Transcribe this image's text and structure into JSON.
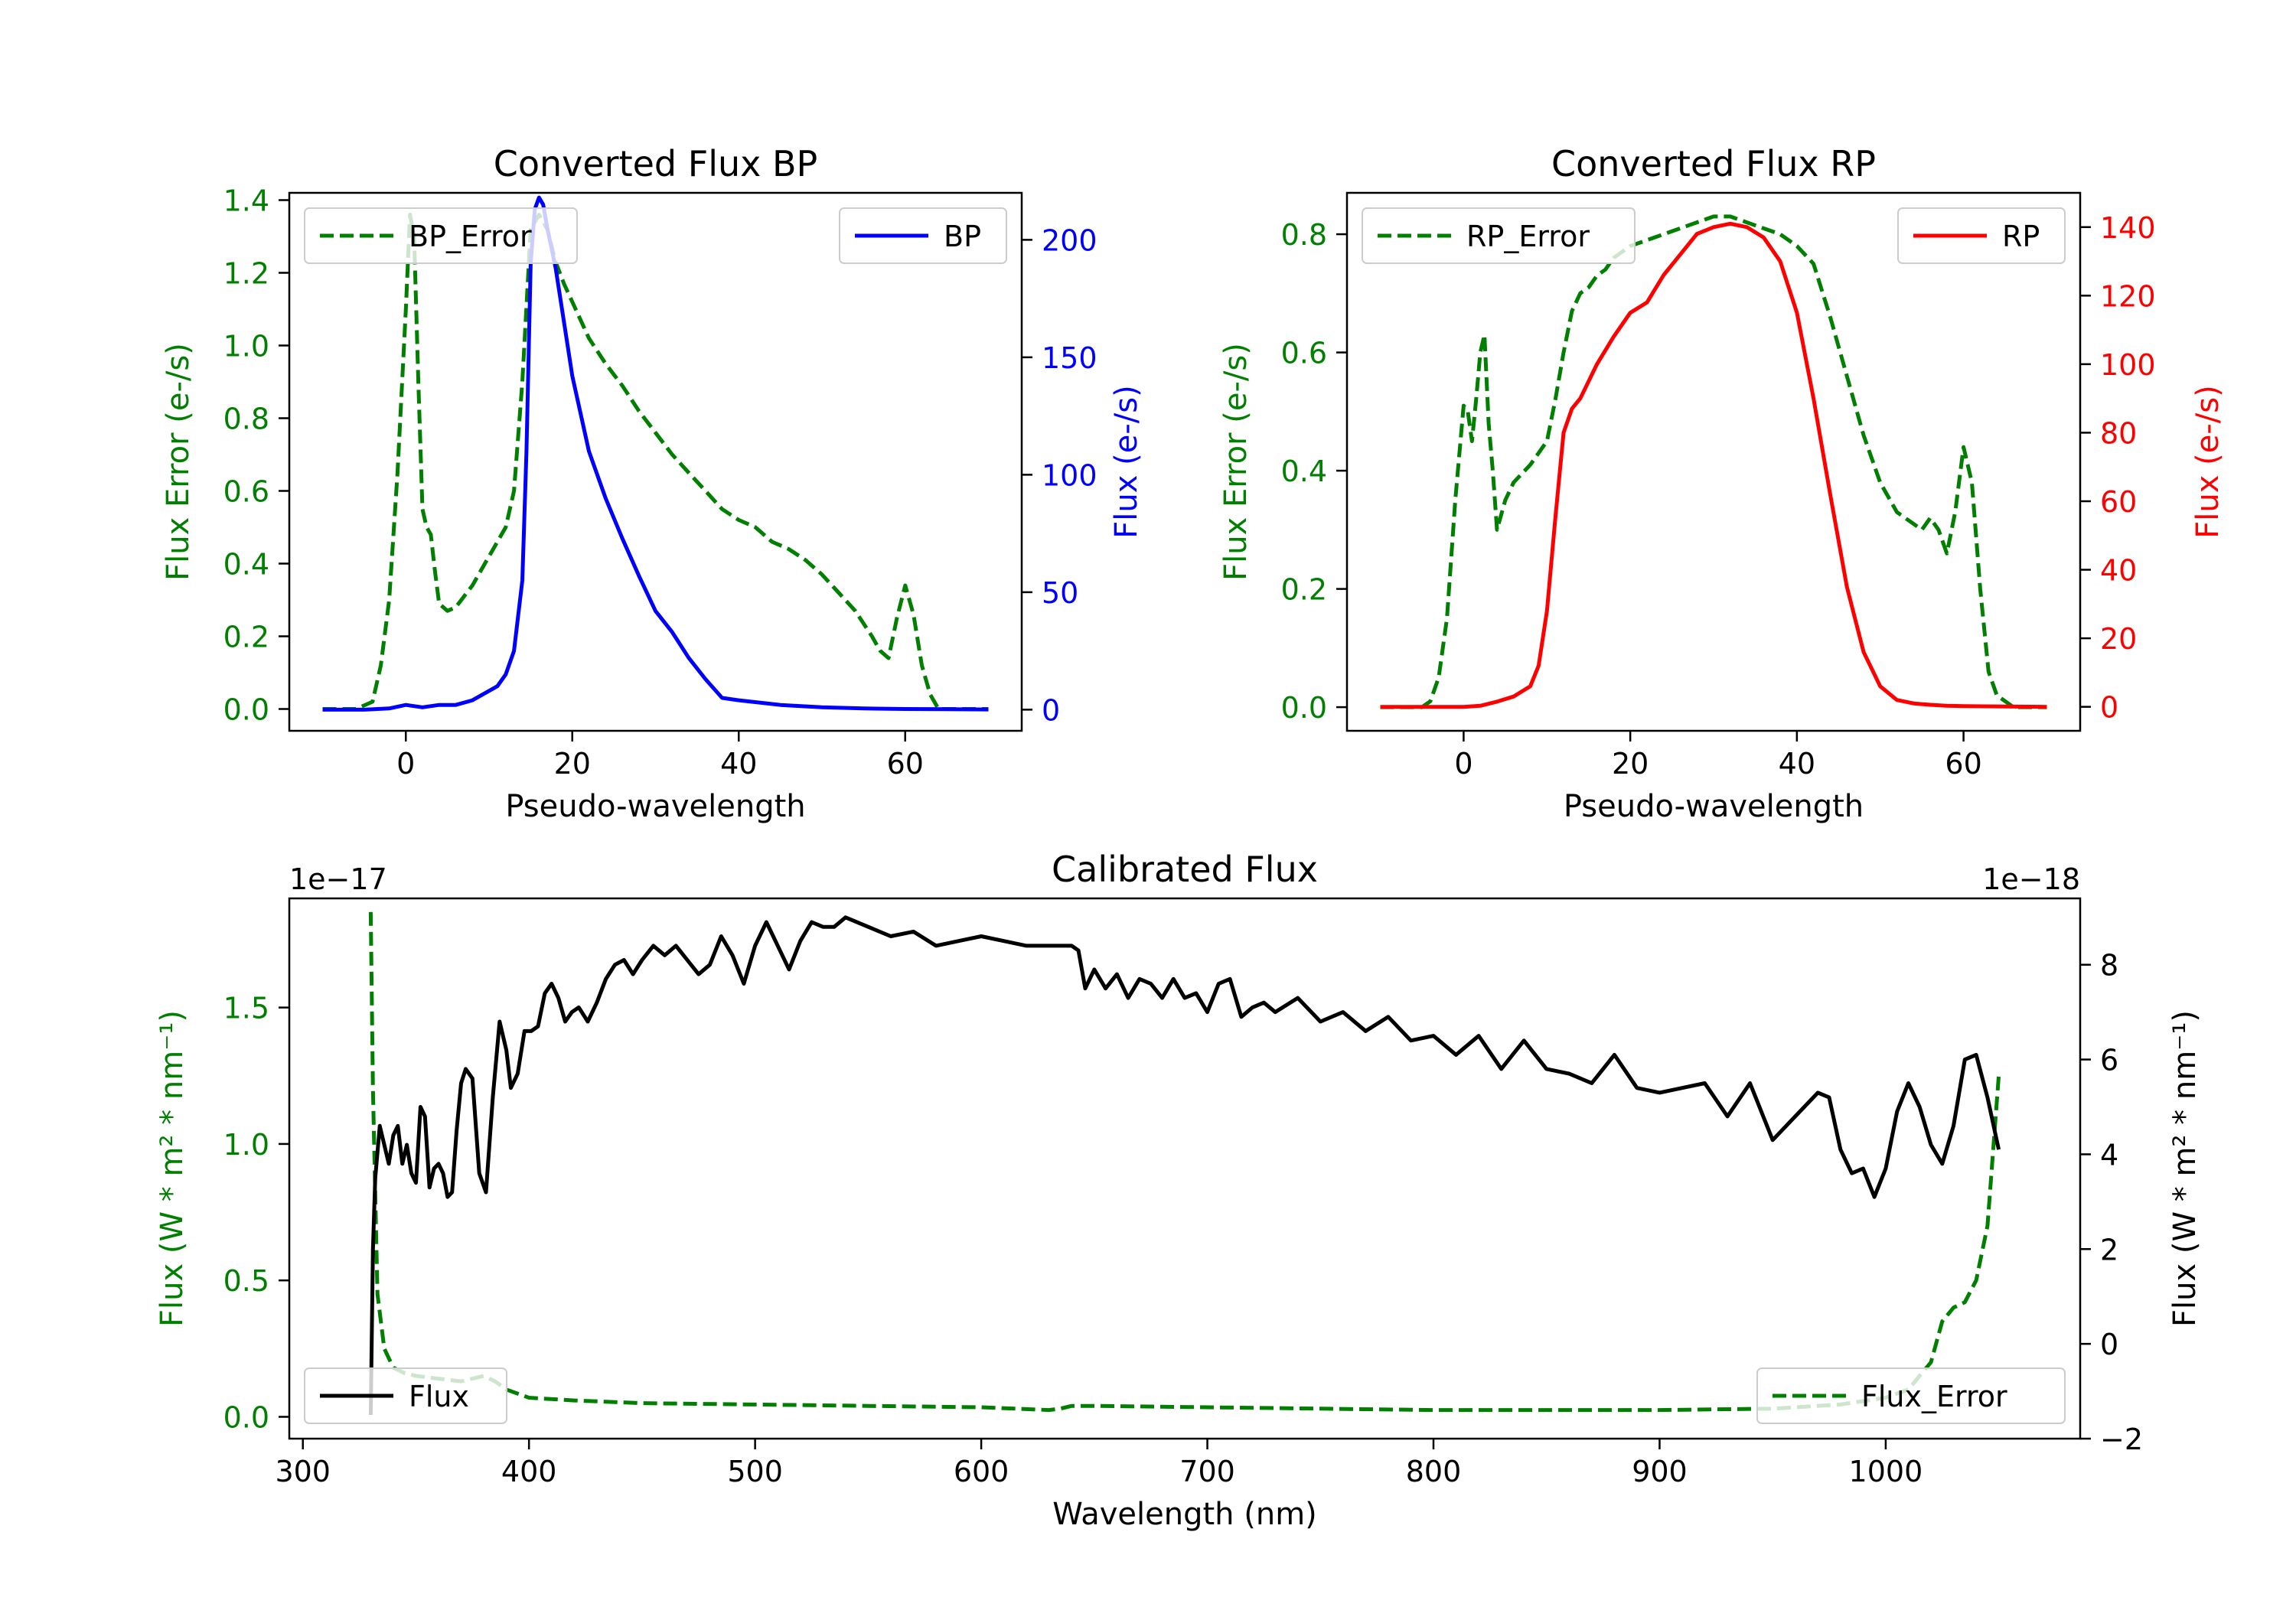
{
  "colors": {
    "bp": "#0000ff",
    "rp": "#ff0000",
    "error": "#007f00",
    "flux": "#000000",
    "axes": "#000000"
  },
  "chart_data": [
    {
      "id": "bp",
      "type": "line",
      "title": "Converted Flux BP",
      "xlabel": "Pseudo-wavelength",
      "ylabel_left": "Flux Error (e-/s)",
      "ylabel_right": "Flux (e-/s)",
      "xlim": [
        -14,
        74
      ],
      "ylim_left": [
        -0.06,
        1.42
      ],
      "ylim_right": [
        -9,
        220
      ],
      "xticks": [
        0,
        20,
        40,
        60
      ],
      "xtick_labels": [
        "0",
        "20",
        "40",
        "60"
      ],
      "yticks_left": [
        0.0,
        0.2,
        0.4,
        0.6,
        0.8,
        1.0,
        1.2,
        1.4
      ],
      "ytick_labels_left": [
        "0.0",
        "0.2",
        "0.4",
        "0.6",
        "0.8",
        "1.0",
        "1.2",
        "1.4"
      ],
      "yticks_right": [
        0,
        50,
        100,
        150,
        200
      ],
      "ytick_labels_right": [
        "0",
        "50",
        "100",
        "150",
        "200"
      ],
      "legend": [
        {
          "label": "BP_Error",
          "position": "top-left",
          "style": "dashed",
          "color": "#007f00"
        },
        {
          "label": "BP",
          "position": "top-right",
          "style": "solid",
          "color": "#0000ff"
        }
      ],
      "series": [
        {
          "name": "BP_Error",
          "axis": "left",
          "style": "dashed",
          "color": "#007f00",
          "x": [
            -10,
            -6,
            -4,
            -3,
            -2,
            -1,
            0,
            0.5,
            1,
            1.5,
            2,
            2.5,
            3,
            3.5,
            4,
            5,
            6,
            8,
            10,
            12,
            13,
            14,
            15,
            16,
            17,
            18,
            19,
            20,
            22,
            24,
            26,
            28,
            30,
            32,
            34,
            36,
            38,
            40,
            42,
            44,
            46,
            48,
            50,
            52,
            54,
            56,
            57,
            58,
            59,
            60,
            61,
            62,
            63,
            64,
            66,
            70
          ],
          "y": [
            0,
            0,
            0.02,
            0.12,
            0.3,
            0.65,
            1.1,
            1.36,
            1.3,
            0.9,
            0.55,
            0.5,
            0.48,
            0.38,
            0.29,
            0.27,
            0.28,
            0.34,
            0.42,
            0.5,
            0.6,
            0.9,
            1.32,
            1.36,
            1.32,
            1.23,
            1.17,
            1.12,
            1.02,
            0.95,
            0.89,
            0.82,
            0.76,
            0.7,
            0.65,
            0.6,
            0.55,
            0.52,
            0.5,
            0.46,
            0.44,
            0.41,
            0.37,
            0.32,
            0.27,
            0.2,
            0.16,
            0.14,
            0.25,
            0.34,
            0.26,
            0.12,
            0.04,
            0,
            0,
            0
          ]
        },
        {
          "name": "BP",
          "axis": "right",
          "style": "solid",
          "color": "#0000ff",
          "x": [
            -10,
            -5,
            -2,
            0,
            2,
            4,
            6,
            8,
            10,
            11,
            12,
            13,
            14,
            14.5,
            15,
            15.5,
            16,
            16.5,
            17,
            18,
            19,
            20,
            22,
            24,
            26,
            28,
            30,
            32,
            34,
            36,
            38,
            40,
            45,
            50,
            55,
            60,
            65,
            70
          ],
          "y": [
            0,
            0,
            0.5,
            2,
            1,
            2,
            2,
            4,
            8,
            10,
            15,
            25,
            55,
            110,
            190,
            213,
            218,
            215,
            205,
            188,
            165,
            142,
            110,
            90,
            73,
            57,
            42,
            33,
            22,
            13,
            5,
            4,
            2,
            1,
            0.5,
            0.3,
            0.2,
            0.1
          ]
        }
      ]
    },
    {
      "id": "rp",
      "type": "line",
      "title": "Converted Flux RP",
      "xlabel": "Pseudo-wavelength",
      "ylabel_left": "Flux Error (e-/s)",
      "ylabel_right": "Flux (e-/s)",
      "xlim": [
        -14,
        74
      ],
      "ylim_left": [
        -0.04,
        0.87
      ],
      "ylim_right": [
        -7,
        150
      ],
      "xticks": [
        0,
        20,
        40,
        60
      ],
      "xtick_labels": [
        "0",
        "20",
        "40",
        "60"
      ],
      "yticks_left": [
        0.0,
        0.2,
        0.4,
        0.6,
        0.8
      ],
      "ytick_labels_left": [
        "0.0",
        "0.2",
        "0.4",
        "0.6",
        "0.8"
      ],
      "yticks_right": [
        0,
        20,
        40,
        60,
        80,
        100,
        120,
        140
      ],
      "ytick_labels_right": [
        "0",
        "20",
        "40",
        "60",
        "80",
        "100",
        "120",
        "140"
      ],
      "legend": [
        {
          "label": "RP_Error",
          "position": "top-left",
          "style": "dashed",
          "color": "#007f00"
        },
        {
          "label": "RP",
          "position": "top-right",
          "style": "solid",
          "color": "#ff0000"
        }
      ],
      "series": [
        {
          "name": "RP_Error",
          "axis": "left",
          "style": "dashed",
          "color": "#007f00",
          "x": [
            -10,
            -5,
            -4,
            -3,
            -2,
            -1,
            0,
            0.5,
            1,
            1.5,
            2,
            2.5,
            3,
            3.5,
            4,
            5,
            6,
            8,
            10,
            11,
            12,
            13,
            14,
            15,
            16,
            17,
            18,
            20,
            22,
            24,
            26,
            28,
            30,
            32,
            34,
            36,
            38,
            40,
            42,
            44,
            46,
            48,
            50,
            52,
            54,
            55,
            56,
            57,
            58,
            59,
            60,
            61,
            62,
            63,
            64,
            66,
            70
          ],
          "y": [
            0,
            0,
            0.01,
            0.05,
            0.15,
            0.35,
            0.51,
            0.5,
            0.45,
            0.52,
            0.6,
            0.63,
            0.48,
            0.4,
            0.3,
            0.35,
            0.38,
            0.41,
            0.45,
            0.52,
            0.6,
            0.67,
            0.7,
            0.71,
            0.73,
            0.74,
            0.76,
            0.78,
            0.79,
            0.8,
            0.81,
            0.82,
            0.83,
            0.83,
            0.82,
            0.81,
            0.8,
            0.78,
            0.75,
            0.66,
            0.56,
            0.46,
            0.38,
            0.33,
            0.31,
            0.3,
            0.32,
            0.3,
            0.26,
            0.33,
            0.44,
            0.38,
            0.2,
            0.06,
            0.02,
            0,
            0
          ]
        },
        {
          "name": "RP",
          "axis": "right",
          "style": "solid",
          "color": "#ff0000",
          "x": [
            -10,
            0,
            2,
            4,
            6,
            8,
            9,
            10,
            11,
            12,
            13,
            14,
            15,
            16,
            18,
            20,
            22,
            24,
            26,
            28,
            30,
            32,
            34,
            36,
            38,
            40,
            42,
            44,
            46,
            48,
            50,
            52,
            54,
            56,
            58,
            60,
            65,
            70
          ],
          "y": [
            0,
            0,
            0.3,
            1.5,
            3,
            6,
            12,
            28,
            55,
            80,
            87,
            90,
            95,
            100,
            108,
            115,
            118,
            126,
            132,
            138,
            140,
            141,
            140,
            137,
            130,
            115,
            90,
            62,
            35,
            16,
            6,
            2,
            1,
            0.6,
            0.3,
            0.2,
            0.1,
            0
          ]
        }
      ]
    },
    {
      "id": "calibrated",
      "type": "line",
      "title": "Calibrated Flux",
      "xlabel": "Wavelength (nm)",
      "ylabel_left": "Flux (W * m² * nm⁻¹)",
      "ylabel_right": "Flux (W * m² * nm⁻¹)",
      "offset_left": "1e−17",
      "offset_right": "1e−18",
      "xlim": [
        294,
        1086
      ],
      "ylim_left": [
        -0.08,
        1.9
      ],
      "ylim_right": [
        -2,
        9.4
      ],
      "xticks": [
        300,
        400,
        500,
        600,
        700,
        800,
        900,
        1000
      ],
      "xtick_labels": [
        "300",
        "400",
        "500",
        "600",
        "700",
        "800",
        "900",
        "1000"
      ],
      "yticks_left": [
        0.0,
        0.5,
        1.0,
        1.5
      ],
      "ytick_labels_left": [
        "0.0",
        "0.5",
        "1.0",
        "1.5"
      ],
      "yticks_right": [
        -2,
        0,
        2,
        4,
        6,
        8
      ],
      "ytick_labels_right": [
        "−2",
        "0",
        "2",
        "4",
        "6",
        "8"
      ],
      "legend": [
        {
          "label": "Flux",
          "position": "bottom-left",
          "style": "solid",
          "color": "#000000"
        },
        {
          "label": "Flux_Error",
          "position": "bottom-right",
          "style": "dashed",
          "color": "#007f00"
        }
      ],
      "series": [
        {
          "name": "Flux_Error",
          "axis": "left",
          "style": "dashed",
          "color": "#007f00",
          "x": [
            330,
            331,
            333,
            336,
            340,
            345,
            350,
            360,
            370,
            380,
            385,
            390,
            400,
            420,
            450,
            500,
            550,
            600,
            630,
            635,
            640,
            650,
            700,
            750,
            800,
            900,
            950,
            980,
            1000,
            1010,
            1015,
            1020,
            1025,
            1030,
            1035,
            1040,
            1045,
            1050
          ],
          "y": [
            1.85,
            1.2,
            0.45,
            0.25,
            0.18,
            0.16,
            0.15,
            0.14,
            0.13,
            0.15,
            0.13,
            0.1,
            0.07,
            0.06,
            0.05,
            0.045,
            0.04,
            0.035,
            0.025,
            0.03,
            0.04,
            0.04,
            0.035,
            0.03,
            0.025,
            0.025,
            0.03,
            0.045,
            0.07,
            0.1,
            0.15,
            0.2,
            0.35,
            0.4,
            0.42,
            0.5,
            0.7,
            1.25
          ]
        },
        {
          "name": "Flux",
          "axis": "right",
          "style": "solid",
          "color": "#000000",
          "x": [
            330,
            331,
            332,
            334,
            336,
            338,
            340,
            342,
            344,
            346,
            348,
            350,
            352,
            354,
            356,
            358,
            360,
            362,
            364,
            366,
            368,
            370,
            372,
            375,
            378,
            381,
            384,
            387,
            390,
            392,
            395,
            398,
            401,
            404,
            407,
            410,
            413,
            416,
            419,
            422,
            426,
            430,
            434,
            438,
            442,
            446,
            450,
            455,
            460,
            465,
            470,
            475,
            480,
            485,
            490,
            495,
            500,
            505,
            510,
            515,
            520,
            525,
            530,
            535,
            540,
            550,
            560,
            570,
            580,
            590,
            600,
            610,
            620,
            630,
            640,
            643,
            646,
            650,
            655,
            660,
            665,
            670,
            675,
            680,
            685,
            690,
            695,
            700,
            705,
            710,
            715,
            720,
            725,
            730,
            740,
            750,
            760,
            770,
            780,
            790,
            800,
            810,
            820,
            830,
            840,
            850,
            860,
            870,
            880,
            890,
            900,
            910,
            920,
            930,
            940,
            950,
            960,
            970,
            975,
            980,
            985,
            990,
            995,
            1000,
            1005,
            1010,
            1015,
            1020,
            1025,
            1030,
            1035,
            1040,
            1045,
            1050
          ],
          "y": [
            -1.5,
            2,
            3.5,
            4.6,
            4.2,
            3.8,
            4.4,
            4.6,
            3.8,
            4.2,
            3.6,
            3.4,
            5,
            4.8,
            3.3,
            3.7,
            3.8,
            3.6,
            3.1,
            3.2,
            4.5,
            5.5,
            5.8,
            5.6,
            3.6,
            3.2,
            5.2,
            6.8,
            6.2,
            5.4,
            5.7,
            6.6,
            6.6,
            6.7,
            7.4,
            7.6,
            7.3,
            6.8,
            7,
            7.1,
            6.8,
            7.2,
            7.7,
            8,
            8.1,
            7.8,
            8.1,
            8.4,
            8.2,
            8.4,
            8.1,
            7.8,
            8,
            8.6,
            8.2,
            7.6,
            8.4,
            8.9,
            8.4,
            7.9,
            8.5,
            8.9,
            8.8,
            8.8,
            9,
            8.8,
            8.6,
            8.7,
            8.4,
            8.5,
            8.6,
            8.5,
            8.4,
            8.4,
            8.4,
            8.3,
            7.5,
            7.9,
            7.5,
            7.8,
            7.3,
            7.7,
            7.6,
            7.3,
            7.7,
            7.3,
            7.4,
            7,
            7.6,
            7.7,
            6.9,
            7.1,
            7.2,
            7,
            7.3,
            6.8,
            7,
            6.6,
            6.9,
            6.4,
            6.5,
            6.1,
            6.5,
            5.8,
            6.4,
            5.8,
            5.7,
            5.5,
            6.1,
            5.4,
            5.3,
            5.4,
            5.5,
            4.8,
            5.5,
            4.3,
            4.8,
            5.3,
            5.2,
            4.1,
            3.6,
            3.7,
            3.1,
            3.7,
            4.9,
            5.5,
            5,
            4.2,
            3.8,
            4.6,
            6,
            6.1,
            5.2,
            4.1
          ]
        }
      ]
    }
  ]
}
